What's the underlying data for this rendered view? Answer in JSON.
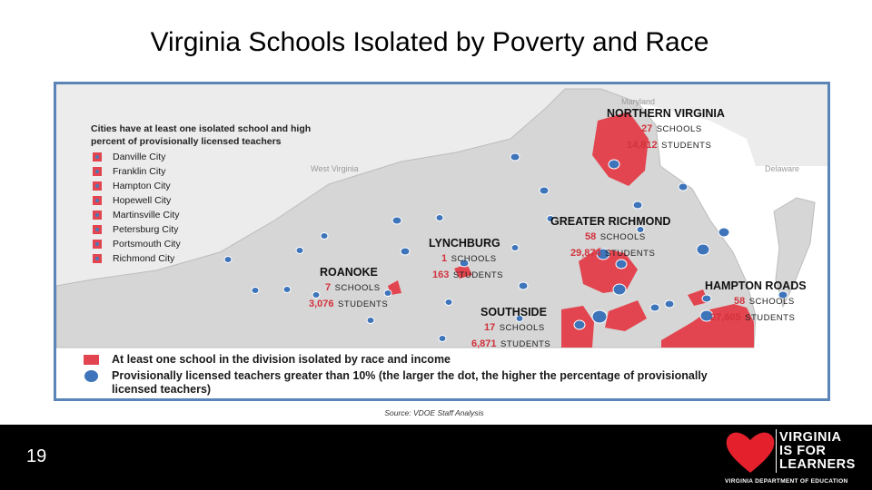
{
  "title": "Virginia Schools Isolated by Poverty and Race",
  "map": {
    "neighbors": {
      "maryland": "Maryland",
      "west_virginia": "West Virginia",
      "delaware": "Delaware"
    },
    "cities_heading_line1": "Cities have at least one isolated school and high",
    "cities_heading_line2": "percent of provisionally licensed teachers",
    "cities": [
      "Danville City",
      "Franklin City",
      "Hampton City",
      "Hopewell City",
      "Martinsville City",
      "Petersburg City",
      "Portsmouth City",
      "Richmond City"
    ],
    "regions": {
      "northern_virginia": {
        "name": "NORTHERN VIRGINIA",
        "schools": "27",
        "schools_label": "SCHOOLS",
        "students": "14,812",
        "students_label": "STUDENTS"
      },
      "greater_richmond": {
        "name": "GREATER RICHMOND",
        "schools": "58",
        "schools_label": "SCHOOLS",
        "students": "29,874",
        "students_label": "STUDENTS"
      },
      "lynchburg": {
        "name": "LYNCHBURG",
        "schools": "1",
        "schools_label": "SCHOOLS",
        "students": "163",
        "students_label": "STUDENTS"
      },
      "roanoke": {
        "name": "ROANOKE",
        "schools": "7",
        "schools_label": "SCHOOLS",
        "students": "3,076",
        "students_label": "STUDENTS"
      },
      "southside": {
        "name": "SOUTHSIDE",
        "schools": "17",
        "schools_label": "SCHOOLS",
        "students": "6,871",
        "students_label": "STUDENTS"
      },
      "hampton_roads": {
        "name": "HAMPTON ROADS",
        "schools": "58",
        "schools_label": "SCHOOLS",
        "students": "27,605",
        "students_label": "STUDENTS"
      }
    },
    "legend": {
      "isolated": "At least one school in the division isolated by race and income",
      "provisional_line1": "Provisionally licensed teachers greater than 10% (the larger the dot, the higher the percentage of provisionally",
      "provisional_line2": "licensed teachers)"
    },
    "colors": {
      "isolated": "#e2454f",
      "provisional": "#3e74b9",
      "land": "#d9d9d9",
      "frame": "#5b85b7"
    }
  },
  "source": "Source: VDOE Staff Analysis",
  "footer": {
    "page_number": "19",
    "logo_line1": "VIRGINIA",
    "logo_line2": "IS FOR",
    "logo_line3": "LEARNERS",
    "logo_dept": "VIRGINIA DEPARTMENT OF EDUCATION",
    "logo_icon": "heart-icon"
  }
}
